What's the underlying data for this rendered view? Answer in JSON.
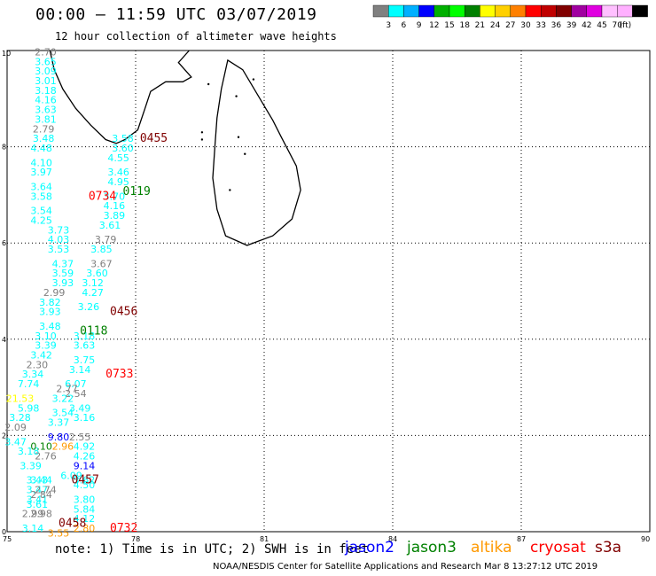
{
  "header": {
    "title": "00:00 – 11:59 UTC 03/07/2019",
    "subtitle": "12 hour collection of altimeter wave heights"
  },
  "colorbar": {
    "colors": [
      "#808080",
      "#00ffff",
      "#00b0ff",
      "#0000ff",
      "#00b000",
      "#00ff00",
      "#008000",
      "#ffff00",
      "#ffd000",
      "#ff8000",
      "#ff0000",
      "#c00000",
      "#800000",
      "#a000a0",
      "#e000e0",
      "#ffc0ff",
      "#ffb0ff",
      "#000000"
    ],
    "labels": [
      "3",
      "6",
      "9",
      "12",
      "15",
      "18",
      "21",
      "24",
      "27",
      "30",
      "33",
      "36",
      "39",
      "42",
      "45",
      "70",
      "(ft)"
    ]
  },
  "footer": {
    "note": "note:  1) Time is in UTC;  2) SWH is in feet",
    "legend": [
      {
        "label": "jason2",
        "color": "#0000ff"
      },
      {
        "label": "jason3",
        "color": "#008000"
      },
      {
        "label": "altika",
        "color": "#ff9900"
      },
      {
        "label": "cryosat",
        "color": "#ff0000"
      },
      {
        "label": "s3a",
        "color": "#800000"
      }
    ],
    "credit": "NOAA/NESDIS Center for Satellite Applications and Research    Mar  8 13:27:12 UTC 2019"
  },
  "chart_data": {
    "type": "scatter",
    "xlim": [
      75,
      90
    ],
    "ylim": [
      0,
      10
    ],
    "x_ticks": [
      75,
      78,
      81,
      84,
      87,
      90
    ],
    "y_ticks": [
      0,
      2,
      4,
      6,
      8,
      10
    ],
    "grid": true,
    "tracks": [
      {
        "label": "0455",
        "lon": 78.1,
        "lat": 8.1,
        "color": "#800000"
      },
      {
        "label": "0734",
        "lon": 76.9,
        "lat": 6.9,
        "color": "#ff0000"
      },
      {
        "label": "0119",
        "lon": 77.7,
        "lat": 7.0,
        "color": "#008000"
      },
      {
        "label": "0456",
        "lon": 77.4,
        "lat": 4.5,
        "color": "#800000"
      },
      {
        "label": "0118",
        "lon": 76.7,
        "lat": 4.1,
        "color": "#008000"
      },
      {
        "label": "0733",
        "lon": 77.3,
        "lat": 3.2,
        "color": "#ff0000"
      },
      {
        "label": "0457",
        "lon": 76.5,
        "lat": 1.0,
        "color": "#800000"
      },
      {
        "label": "0458",
        "lon": 76.2,
        "lat": 0.1,
        "color": "#800000"
      },
      {
        "label": "0732",
        "lon": 77.4,
        "lat": 0.0,
        "color": "#ff0000"
      }
    ],
    "points": [
      {
        "lon": 75.9,
        "lat": 9.9,
        "v": "2.70",
        "c": "#808080"
      },
      {
        "lon": 75.9,
        "lat": 9.7,
        "v": "3.65",
        "c": "#00ffff"
      },
      {
        "lon": 75.9,
        "lat": 9.5,
        "v": "3.09",
        "c": "#00ffff"
      },
      {
        "lon": 75.9,
        "lat": 9.3,
        "v": "3.01",
        "c": "#00ffff"
      },
      {
        "lon": 75.9,
        "lat": 9.1,
        "v": "3.18",
        "c": "#00ffff"
      },
      {
        "lon": 75.9,
        "lat": 8.9,
        "v": "4.16",
        "c": "#00ffff"
      },
      {
        "lon": 75.9,
        "lat": 8.7,
        "v": "3.63",
        "c": "#00ffff"
      },
      {
        "lon": 75.9,
        "lat": 8.5,
        "v": "3.81",
        "c": "#00ffff"
      },
      {
        "lon": 75.85,
        "lat": 8.3,
        "v": "2.79",
        "c": "#808080"
      },
      {
        "lon": 75.85,
        "lat": 8.1,
        "v": "3.48",
        "c": "#00ffff"
      },
      {
        "lon": 75.8,
        "lat": 7.9,
        "v": "4.48",
        "c": "#00ffff"
      },
      {
        "lon": 75.8,
        "lat": 7.6,
        "v": "4.10",
        "c": "#00ffff"
      },
      {
        "lon": 75.8,
        "lat": 7.4,
        "v": "3.97",
        "c": "#00ffff"
      },
      {
        "lon": 75.8,
        "lat": 7.1,
        "v": "3.64",
        "c": "#00ffff"
      },
      {
        "lon": 75.8,
        "lat": 6.9,
        "v": "3.58",
        "c": "#00ffff"
      },
      {
        "lon": 75.8,
        "lat": 6.6,
        "v": "3.54",
        "c": "#00ffff"
      },
      {
        "lon": 75.8,
        "lat": 6.4,
        "v": "4.25",
        "c": "#00ffff"
      },
      {
        "lon": 76.2,
        "lat": 6.2,
        "v": "3.73",
        "c": "#00ffff"
      },
      {
        "lon": 76.2,
        "lat": 6.0,
        "v": "4.03",
        "c": "#00ffff"
      },
      {
        "lon": 76.2,
        "lat": 5.8,
        "v": "3.53",
        "c": "#00ffff"
      },
      {
        "lon": 76.3,
        "lat": 5.5,
        "v": "4.37",
        "c": "#00ffff"
      },
      {
        "lon": 76.3,
        "lat": 5.3,
        "v": "3.59",
        "c": "#00ffff"
      },
      {
        "lon": 76.3,
        "lat": 5.1,
        "v": "3.93",
        "c": "#00ffff"
      },
      {
        "lon": 76.1,
        "lat": 4.9,
        "v": "2.99",
        "c": "#808080"
      },
      {
        "lon": 76.0,
        "lat": 4.7,
        "v": "3.82",
        "c": "#00ffff"
      },
      {
        "lon": 76.0,
        "lat": 4.5,
        "v": "3.93",
        "c": "#00ffff"
      },
      {
        "lon": 76.0,
        "lat": 4.2,
        "v": "3.48",
        "c": "#00ffff"
      },
      {
        "lon": 75.9,
        "lat": 4.0,
        "v": "3.10",
        "c": "#00ffff"
      },
      {
        "lon": 75.9,
        "lat": 3.8,
        "v": "3.39",
        "c": "#00ffff"
      },
      {
        "lon": 75.8,
        "lat": 3.6,
        "v": "3.42",
        "c": "#00ffff"
      },
      {
        "lon": 75.7,
        "lat": 3.4,
        "v": "2.30",
        "c": "#808080"
      },
      {
        "lon": 75.6,
        "lat": 3.2,
        "v": "3.34",
        "c": "#00ffff"
      },
      {
        "lon": 75.5,
        "lat": 3.0,
        "v": "7.74",
        "c": "#00ffff"
      },
      {
        "lon": 75.3,
        "lat": 2.7,
        "v": "21.53",
        "c": "#ffff00"
      },
      {
        "lon": 75.5,
        "lat": 2.5,
        "v": "5.98",
        "c": "#00ffff"
      },
      {
        "lon": 75.3,
        "lat": 2.3,
        "v": "3.28",
        "c": "#00ffff"
      },
      {
        "lon": 75.2,
        "lat": 2.1,
        "v": "2.09",
        "c": "#808080"
      },
      {
        "lon": 75.2,
        "lat": 1.8,
        "v": "3.47",
        "c": "#00ffff"
      },
      {
        "lon": 75.5,
        "lat": 1.6,
        "v": "3.18",
        "c": "#00ffff"
      },
      {
        "lon": 75.55,
        "lat": 1.3,
        "v": "3.39",
        "c": "#00ffff"
      },
      {
        "lon": 75.7,
        "lat": 1.0,
        "v": "3.43",
        "c": "#00ffff"
      },
      {
        "lon": 75.7,
        "lat": 0.8,
        "v": "3.47",
        "c": "#00ffff"
      },
      {
        "lon": 75.7,
        "lat": 0.6,
        "v": "3.41",
        "c": "#00ffff"
      },
      {
        "lon": 75.6,
        "lat": 0.3,
        "v": "2.99",
        "c": "#808080"
      },
      {
        "lon": 75.6,
        "lat": 0.0,
        "v": "3.14",
        "c": "#00ffff"
      },
      {
        "lon": 77.7,
        "lat": 8.1,
        "v": "3.58",
        "c": "#00ffff"
      },
      {
        "lon": 77.7,
        "lat": 7.9,
        "v": "3.60",
        "c": "#00ffff"
      },
      {
        "lon": 77.6,
        "lat": 7.7,
        "v": "4.55",
        "c": "#00ffff"
      },
      {
        "lon": 77.6,
        "lat": 7.4,
        "v": "3.46",
        "c": "#00ffff"
      },
      {
        "lon": 77.6,
        "lat": 7.2,
        "v": "4.95",
        "c": "#00ffff"
      },
      {
        "lon": 77.5,
        "lat": 6.9,
        "v": "3.70",
        "c": "#00ffff"
      },
      {
        "lon": 77.5,
        "lat": 6.7,
        "v": "4.16",
        "c": "#00ffff"
      },
      {
        "lon": 77.5,
        "lat": 6.5,
        "v": "3.89",
        "c": "#00ffff"
      },
      {
        "lon": 77.4,
        "lat": 6.3,
        "v": "3.61",
        "c": "#00ffff"
      },
      {
        "lon": 77.3,
        "lat": 6.0,
        "v": "3.79",
        "c": "#808080"
      },
      {
        "lon": 77.2,
        "lat": 5.8,
        "v": "3.85",
        "c": "#00ffff"
      },
      {
        "lon": 77.2,
        "lat": 5.5,
        "v": "3.67",
        "c": "#808080"
      },
      {
        "lon": 77.1,
        "lat": 5.3,
        "v": "3.60",
        "c": "#00ffff"
      },
      {
        "lon": 77.0,
        "lat": 5.1,
        "v": "3.12",
        "c": "#00ffff"
      },
      {
        "lon": 77.0,
        "lat": 4.9,
        "v": "4.27",
        "c": "#00ffff"
      },
      {
        "lon": 76.9,
        "lat": 4.6,
        "v": "3.26",
        "c": "#00ffff"
      },
      {
        "lon": 76.8,
        "lat": 4.0,
        "v": "3.18",
        "c": "#00ffff"
      },
      {
        "lon": 76.8,
        "lat": 3.8,
        "v": "3.63",
        "c": "#00ffff"
      },
      {
        "lon": 76.8,
        "lat": 3.5,
        "v": "3.75",
        "c": "#00ffff"
      },
      {
        "lon": 76.7,
        "lat": 3.3,
        "v": "3.14",
        "c": "#00ffff"
      },
      {
        "lon": 76.6,
        "lat": 3.0,
        "v": "6.07",
        "c": "#00ffff"
      },
      {
        "lon": 76.4,
        "lat": 2.9,
        "v": "2.77",
        "c": "#808080"
      },
      {
        "lon": 76.6,
        "lat": 2.8,
        "v": "2.54",
        "c": "#808080"
      },
      {
        "lon": 76.3,
        "lat": 2.7,
        "v": "3.22",
        "c": "#00ffff"
      },
      {
        "lon": 76.7,
        "lat": 2.5,
        "v": "3.49",
        "c": "#00ffff"
      },
      {
        "lon": 76.3,
        "lat": 2.4,
        "v": "3.54",
        "c": "#00ffff"
      },
      {
        "lon": 76.8,
        "lat": 2.3,
        "v": "3.16",
        "c": "#00ffff"
      },
      {
        "lon": 76.2,
        "lat": 2.2,
        "v": "3.37",
        "c": "#00ffff"
      },
      {
        "lon": 76.7,
        "lat": 1.9,
        "v": "2.55",
        "c": "#808080"
      },
      {
        "lon": 76.2,
        "lat": 1.9,
        "v": "9.80",
        "c": "#0000ff"
      },
      {
        "lon": 76.8,
        "lat": 1.7,
        "v": "4.92",
        "c": "#00ffff"
      },
      {
        "lon": 76.3,
        "lat": 1.7,
        "v": "2.96",
        "c": "#ff9900"
      },
      {
        "lon": 75.8,
        "lat": 1.7,
        "v": "0.10",
        "c": "#008000"
      },
      {
        "lon": 76.8,
        "lat": 1.5,
        "v": "4.26",
        "c": "#00ffff"
      },
      {
        "lon": 75.9,
        "lat": 1.5,
        "v": "2.76",
        "c": "#808080"
      },
      {
        "lon": 76.8,
        "lat": 1.3,
        "v": "9.14",
        "c": "#0000ff"
      },
      {
        "lon": 76.5,
        "lat": 1.1,
        "v": "6.09",
        "c": "#00ffff"
      },
      {
        "lon": 76.8,
        "lat": 1.0,
        "v": "3.62",
        "c": "#00ffff"
      },
      {
        "lon": 75.8,
        "lat": 1.0,
        "v": "3.44",
        "c": "#00ffff"
      },
      {
        "lon": 76.8,
        "lat": 0.9,
        "v": "4.50",
        "c": "#00ffff"
      },
      {
        "lon": 75.9,
        "lat": 0.8,
        "v": "2.74",
        "c": "#808080"
      },
      {
        "lon": 76.8,
        "lat": 0.6,
        "v": "3.80",
        "c": "#00ffff"
      },
      {
        "lon": 75.8,
        "lat": 0.7,
        "v": "2.84",
        "c": "#808080"
      },
      {
        "lon": 76.8,
        "lat": 0.4,
        "v": "5.84",
        "c": "#00ffff"
      },
      {
        "lon": 75.7,
        "lat": 0.5,
        "v": "3.61",
        "c": "#00ffff"
      },
      {
        "lon": 76.8,
        "lat": 0.2,
        "v": "4.12",
        "c": "#00ffff"
      },
      {
        "lon": 75.8,
        "lat": 0.3,
        "v": "2.98",
        "c": "#808080"
      },
      {
        "lon": 76.8,
        "lat": 0.0,
        "v": "2.80",
        "c": "#ff9900"
      },
      {
        "lon": 76.2,
        "lat": -0.1,
        "v": "3.55",
        "c": "#ff9900"
      }
    ]
  }
}
